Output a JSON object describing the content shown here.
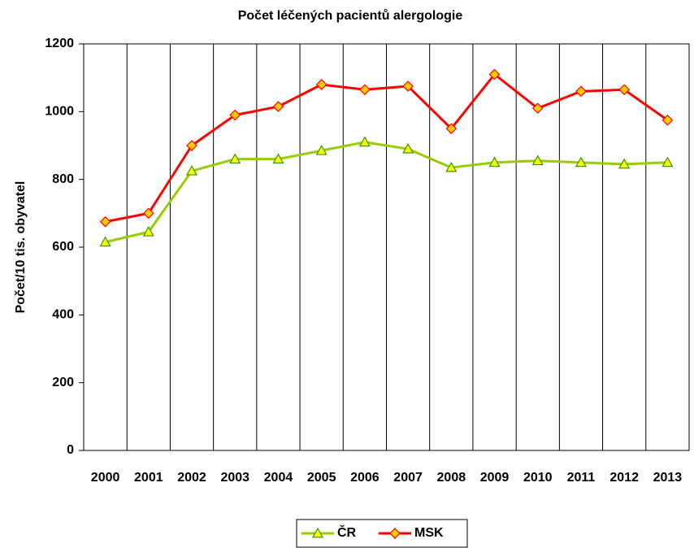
{
  "chart_data": {
    "type": "line",
    "title": "Počet léčených pacientů alergologie",
    "y_label": "Počet/10 tis. obyvatel",
    "categories": [
      "2000",
      "2001",
      "2002",
      "2003",
      "2004",
      "2005",
      "2006",
      "2007",
      "2008",
      "2009",
      "2010",
      "2011",
      "2012",
      "2013"
    ],
    "series": [
      {
        "name": "ČR",
        "color": "#99cc00",
        "marker": "triangle",
        "marker_fill": "#ffff00",
        "values": [
          615,
          645,
          825,
          860,
          860,
          885,
          910,
          890,
          835,
          850,
          855,
          850,
          845,
          850
        ]
      },
      {
        "name": "MSK",
        "color": "#ff0000",
        "marker": "diamond",
        "marker_fill": "#ffcc00",
        "values": [
          675,
          700,
          900,
          990,
          1015,
          1080,
          1065,
          1075,
          950,
          1110,
          1010,
          1060,
          1065,
          975
        ]
      }
    ],
    "ylim": [
      0,
      1200
    ],
    "yticks": [
      0,
      200,
      400,
      600,
      800,
      1000,
      1200
    ],
    "grid": "x",
    "legend": "bottom"
  }
}
